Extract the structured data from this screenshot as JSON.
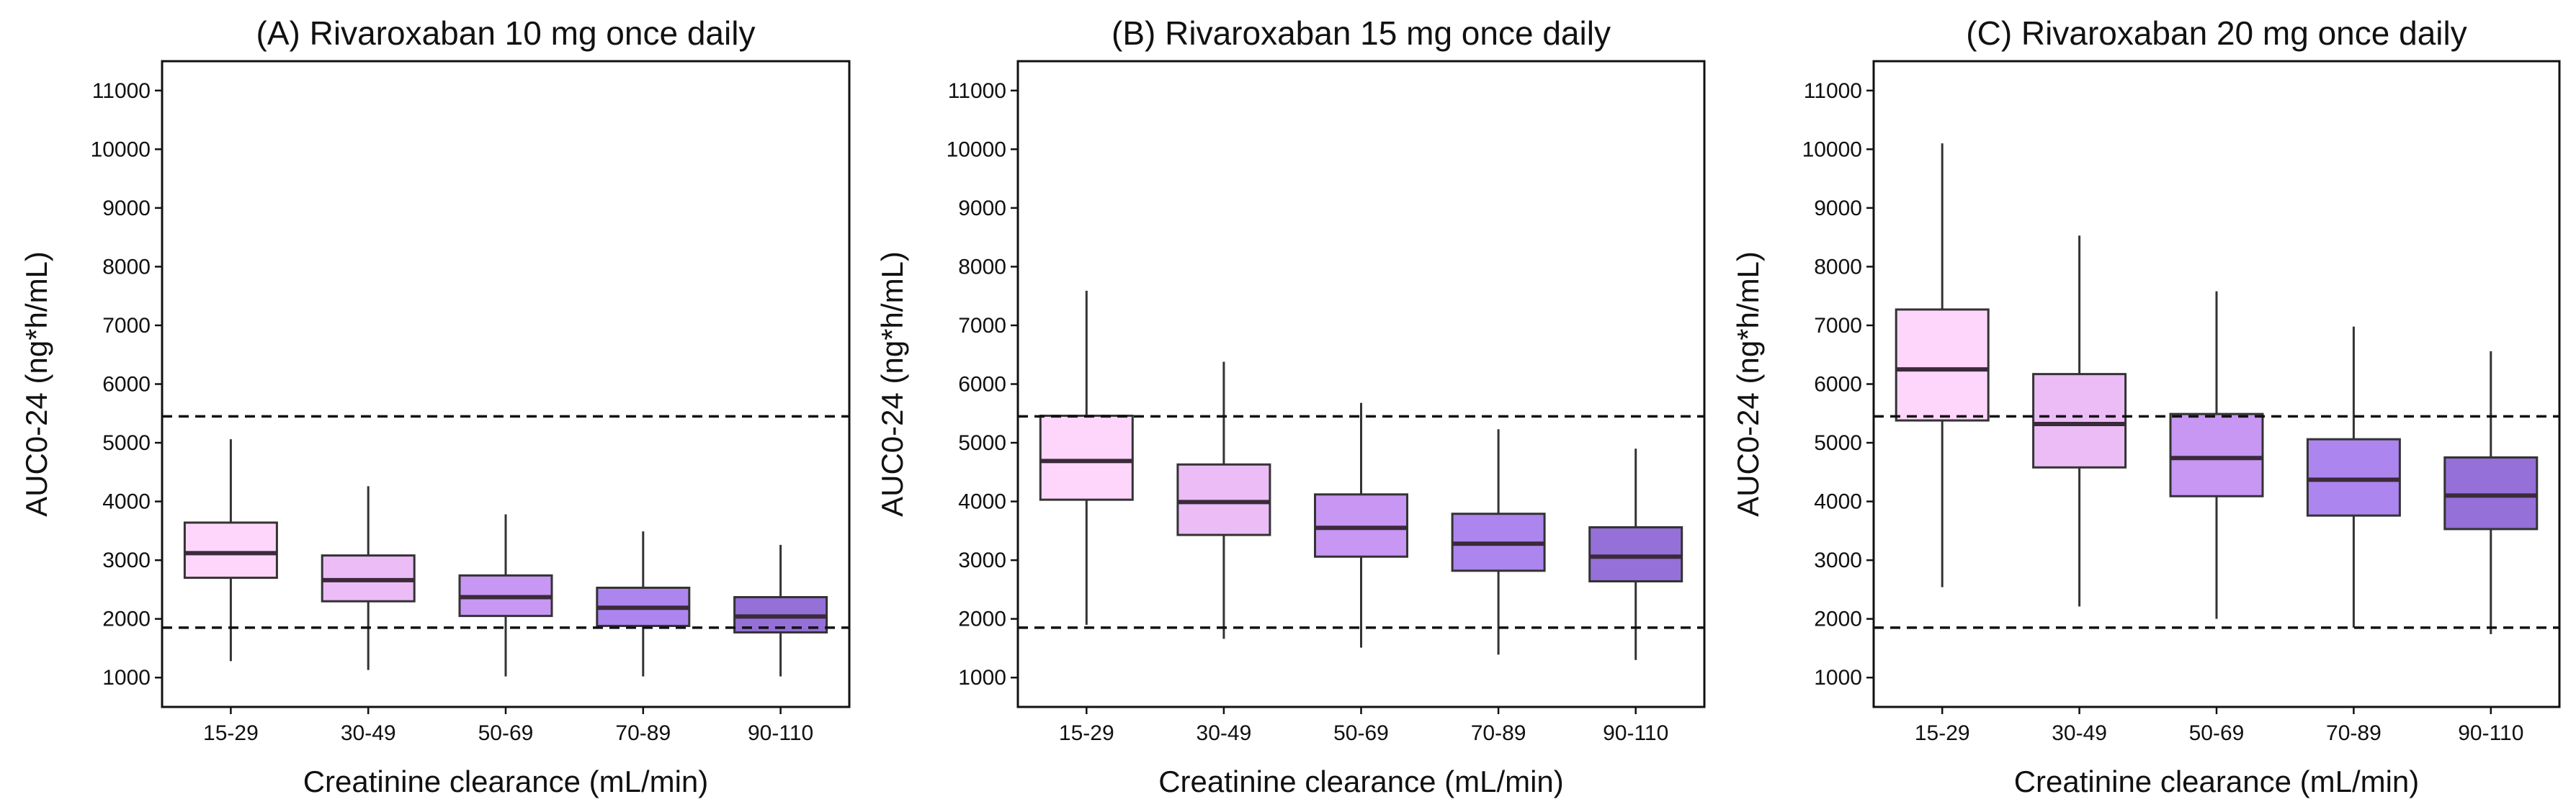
{
  "chart_data": [
    {
      "type": "box",
      "title": "(A) Rivaroxaban 10 mg once daily",
      "xlabel": "Creatinine clearance (mL/min)",
      "ylabel": "AUC0-24 (ng*h/mL)",
      "ylim": [
        500,
        11500
      ],
      "yticks": [
        1000,
        2000,
        3000,
        4000,
        5000,
        6000,
        7000,
        8000,
        9000,
        10000,
        11000
      ],
      "reference_lines": [
        1850,
        5450
      ],
      "categories": [
        "15-29",
        "30-49",
        "50-69",
        "70-89",
        "90-110"
      ],
      "boxes": [
        {
          "min": 1280,
          "q1": 2700,
          "median": 3120,
          "q3": 3640,
          "max": 5060
        },
        {
          "min": 1130,
          "q1": 2300,
          "median": 2660,
          "q3": 3080,
          "max": 4260
        },
        {
          "min": 1020,
          "q1": 2050,
          "median": 2370,
          "q3": 2740,
          "max": 3780
        },
        {
          "min": 1020,
          "q1": 1880,
          "median": 2190,
          "q3": 2530,
          "max": 3490
        },
        {
          "min": 1020,
          "q1": 1770,
          "median": 2040,
          "q3": 2370,
          "max": 3260
        }
      ]
    },
    {
      "type": "box",
      "title": "(B) Rivaroxaban 15 mg once daily",
      "xlabel": "Creatinine clearance (mL/min)",
      "ylabel": "AUC0-24 (ng*h/mL)",
      "ylim": [
        500,
        11500
      ],
      "yticks": [
        1000,
        2000,
        3000,
        4000,
        5000,
        6000,
        7000,
        8000,
        9000,
        10000,
        11000
      ],
      "reference_lines": [
        1850,
        5450
      ],
      "categories": [
        "15-29",
        "30-49",
        "50-69",
        "70-89",
        "90-110"
      ],
      "boxes": [
        {
          "min": 1900,
          "q1": 4030,
          "median": 4690,
          "q3": 5460,
          "max": 7590
        },
        {
          "min": 1660,
          "q1": 3430,
          "median": 3990,
          "q3": 4630,
          "max": 6380
        },
        {
          "min": 1510,
          "q1": 3060,
          "median": 3550,
          "q3": 4120,
          "max": 5680
        },
        {
          "min": 1390,
          "q1": 2820,
          "median": 3280,
          "q3": 3790,
          "max": 5230
        },
        {
          "min": 1300,
          "q1": 2640,
          "median": 3060,
          "q3": 3560,
          "max": 4900
        }
      ]
    },
    {
      "type": "box",
      "title": "(C) Rivaroxaban 20 mg once daily",
      "xlabel": "Creatinine clearance (mL/min)",
      "ylabel": "AUC0-24 (ng*h/mL)",
      "ylim": [
        500,
        11500
      ],
      "yticks": [
        1000,
        2000,
        3000,
        4000,
        5000,
        6000,
        7000,
        8000,
        9000,
        10000,
        11000
      ],
      "reference_lines": [
        1850,
        5450
      ],
      "categories": [
        "15-29",
        "30-49",
        "50-69",
        "70-89",
        "90-110"
      ],
      "boxes": [
        {
          "min": 2540,
          "q1": 5380,
          "median": 6250,
          "q3": 7270,
          "max": 10100
        },
        {
          "min": 2210,
          "q1": 4580,
          "median": 5320,
          "q3": 6170,
          "max": 8530
        },
        {
          "min": 2000,
          "q1": 4090,
          "median": 4740,
          "q3": 5490,
          "max": 7580
        },
        {
          "min": 1850,
          "q1": 3760,
          "median": 4370,
          "q3": 5060,
          "max": 6980
        },
        {
          "min": 1740,
          "q1": 3530,
          "median": 4100,
          "q3": 4750,
          "max": 6560
        }
      ]
    }
  ],
  "colors": {
    "boxes": [
      "#ffd6fb",
      "#ecbcf7",
      "#c896f3",
      "#ac85ee",
      "#9470d8"
    ],
    "frame": "#111111",
    "whisker": "#333333",
    "median": "#3a2a3a"
  }
}
